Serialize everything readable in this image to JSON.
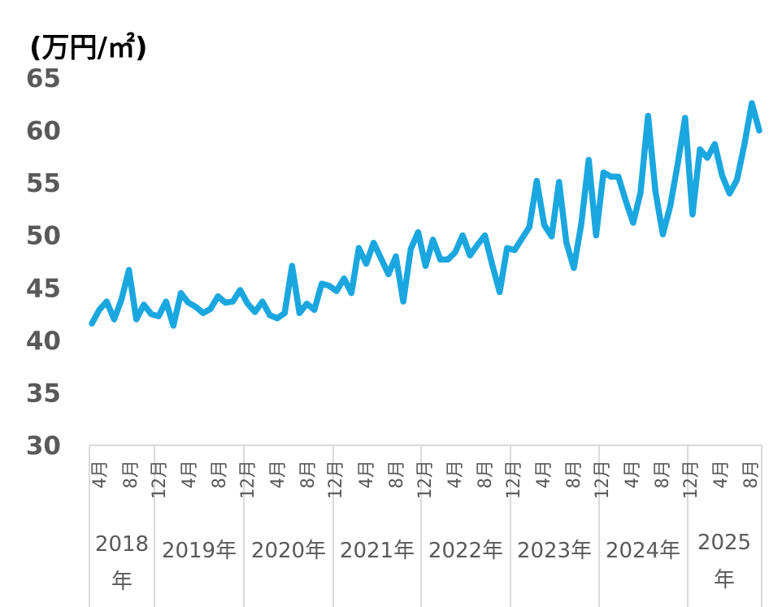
{
  "chart_data": {
    "type": "line",
    "unit_label": "(万円/㎡)",
    "ylim": [
      30,
      65
    ],
    "yticks": [
      "30",
      "35",
      "40",
      "45",
      "50",
      "55",
      "60",
      "65"
    ],
    "line_color": "#1AA7E0",
    "grid": false,
    "x_month_labels": [
      "4月",
      "8月",
      "12月",
      "4月",
      "8月",
      "12月",
      "4月",
      "8月",
      "12月",
      "4月",
      "8月",
      "12月",
      "4月",
      "8月",
      "12月",
      "4月",
      "8月",
      "12月",
      "4月",
      "8月",
      "12月",
      "4月",
      "8月"
    ],
    "x_year_labels": [
      "2018年",
      "2019年",
      "2020年",
      "2021年",
      "2022年",
      "2023年",
      "2024年",
      "2025年"
    ],
    "series": [
      {
        "values": [
          41.6,
          42.9,
          43.7,
          42.0,
          43.9,
          46.7,
          42.0,
          43.4,
          42.5,
          42.3,
          43.7,
          41.4,
          44.5,
          43.6,
          43.2,
          42.6,
          43.0,
          44.2,
          43.6,
          43.7,
          44.8,
          43.5,
          42.7,
          43.7,
          42.4,
          42.1,
          42.6,
          47.1,
          42.6,
          43.5,
          42.9,
          45.4,
          45.2,
          44.7,
          45.9,
          44.5,
          48.8,
          47.3,
          49.3,
          47.8,
          46.3,
          48.0,
          43.7,
          48.7,
          50.3,
          47.1,
          49.6,
          47.7,
          47.7,
          48.4,
          50.0,
          48.1,
          49.1,
          50.0,
          47.2,
          44.6,
          48.8,
          48.6,
          49.7,
          50.8,
          55.2,
          51.0,
          49.9,
          55.1,
          49.3,
          46.9,
          51.1,
          57.2,
          50.0,
          56.0,
          55.6,
          55.6,
          53.3,
          51.2,
          54.1,
          61.4,
          54.2,
          50.1,
          52.8,
          56.8,
          61.2,
          52.0,
          58.2,
          57.4,
          58.7,
          55.7,
          54.0,
          55.3,
          58.7,
          62.6,
          60.0
        ]
      }
    ]
  }
}
